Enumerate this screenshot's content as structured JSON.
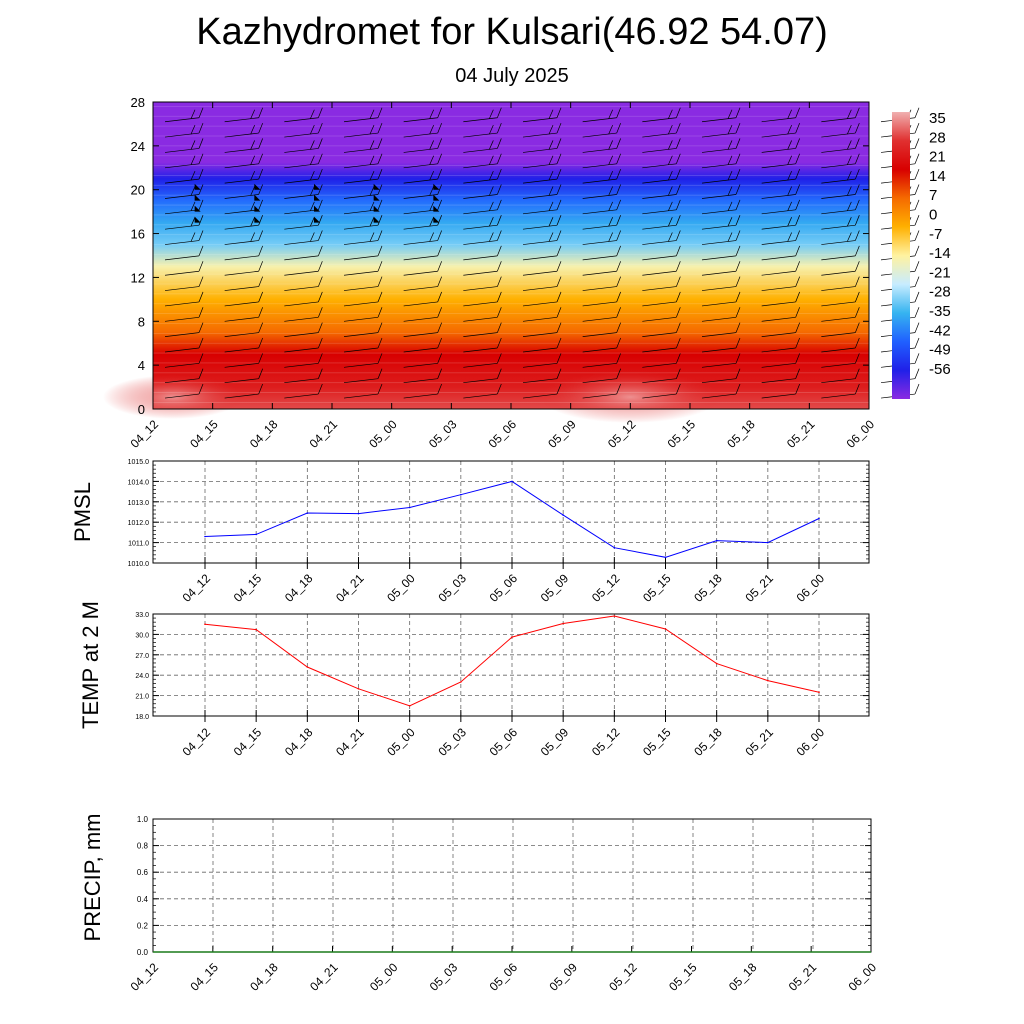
{
  "page": {
    "title": "Kazhydromet for Kulsari(46.92 54.07)",
    "subtitle": "04 July 2025"
  },
  "chart_data": [
    {
      "type": "heatmap",
      "name": "cross-section",
      "x_categories": [
        "04_12",
        "04_15",
        "04_18",
        "04_21",
        "05_00",
        "05_03",
        "05_06",
        "05_09",
        "05_12",
        "05_15",
        "05_18",
        "05_21",
        "06_00"
      ],
      "y_ticks": [
        0,
        4,
        8,
        12,
        16,
        20,
        24,
        28
      ],
      "ylim": [
        0,
        28
      ],
      "colorbar_labels": [
        "35",
        "28",
        "21",
        "14",
        "7",
        "0",
        "-7",
        "-14",
        "-21",
        "-28",
        "-35",
        "-42",
        "-49",
        "-56"
      ],
      "color_stops": [
        {
          "v": 35,
          "color": "#f0b0b0"
        },
        {
          "v": 30,
          "color": "#e03030"
        },
        {
          "v": 20,
          "color": "#d80000"
        },
        {
          "v": 12,
          "color": "#f56a00"
        },
        {
          "v": 4,
          "color": "#ffb000"
        },
        {
          "v": -7,
          "color": "#fff2a0"
        },
        {
          "v": -14,
          "color": "#c8ecff"
        },
        {
          "v": -28,
          "color": "#36b4f0"
        },
        {
          "v": -42,
          "color": "#2060ff"
        },
        {
          "v": -52,
          "color": "#2020e8"
        },
        {
          "v": -58,
          "color": "#8a2be2"
        }
      ],
      "level_values": [
        {
          "z": 0,
          "v": 31
        },
        {
          "z": 2,
          "v": 26
        },
        {
          "z": 5,
          "v": 20
        },
        {
          "z": 7,
          "v": 12
        },
        {
          "z": 10,
          "v": 4
        },
        {
          "z": 13,
          "v": -8
        },
        {
          "z": 15,
          "v": -22
        },
        {
          "z": 17,
          "v": -30
        },
        {
          "z": 19,
          "v": -40
        },
        {
          "z": 21,
          "v": -52
        },
        {
          "z": 22.5,
          "v": -58
        },
        {
          "z": 28,
          "v": -60
        }
      ],
      "barb_pennant_levels": [
        20,
        19,
        18,
        17
      ],
      "barb_pennant_columns": [
        "04_15",
        "04_18",
        "04_21",
        "05_00",
        "05_03"
      ]
    },
    {
      "type": "line",
      "ylabel": "PMSL",
      "ylim": [
        1010,
        1015
      ],
      "y_ticks": [
        "1010.0",
        "1011.0",
        "1012.0",
        "1013.0",
        "1014.0",
        "1015.0"
      ],
      "categories": [
        "04_12",
        "04_15",
        "04_18",
        "04_21",
        "05_00",
        "05_03",
        "05_06",
        "05_09",
        "05_12",
        "05_15",
        "05_18",
        "05_21",
        "06_00"
      ],
      "series": [
        {
          "color": "#0000ff",
          "values": [
            1011.3,
            1011.4,
            1012.45,
            1012.42,
            1012.72,
            1013.35,
            1014.0,
            1012.35,
            1010.75,
            1010.28,
            1011.1,
            1011.0,
            1012.18
          ]
        }
      ]
    },
    {
      "type": "line",
      "ylabel": "TEMP at 2 M",
      "ylim": [
        18,
        33
      ],
      "y_ticks": [
        "18.0",
        "21.0",
        "24.0",
        "27.0",
        "30.0",
        "33.0"
      ],
      "categories": [
        "04_12",
        "04_15",
        "04_18",
        "04_21",
        "05_00",
        "05_03",
        "05_06",
        "05_09",
        "05_12",
        "05_15",
        "05_18",
        "05_21",
        "06_00"
      ],
      "series": [
        {
          "color": "#ff0000",
          "values": [
            31.5,
            30.7,
            25.2,
            22.0,
            19.5,
            23.0,
            29.6,
            31.6,
            32.7,
            30.8,
            25.7,
            23.2,
            21.5
          ]
        }
      ]
    },
    {
      "type": "line",
      "ylabel": "PRECIP, mm",
      "ylim": [
        0,
        1
      ],
      "y_ticks": [
        "0.0",
        "0.2",
        "0.4",
        "0.6",
        "0.8",
        "1.0"
      ],
      "categories": [
        "04_12",
        "04_15",
        "04_18",
        "04_21",
        "05_00",
        "05_03",
        "05_06",
        "05_09",
        "05_12",
        "05_15",
        "05_18",
        "05_21",
        "06_00"
      ],
      "series": [
        {
          "color": "#1a7a1a",
          "values": [
            0,
            0,
            0,
            0,
            0,
            0,
            0,
            0,
            0,
            0,
            0,
            0,
            0
          ]
        }
      ]
    }
  ]
}
